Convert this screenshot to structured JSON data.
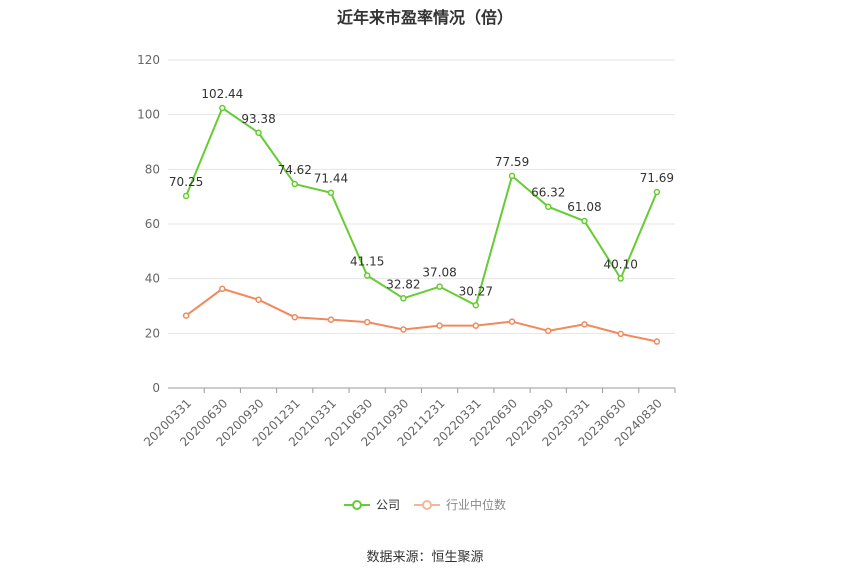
{
  "title": "近年来市盈率情况（倍）",
  "source": "数据来源：恒生聚源",
  "chart_data": {
    "type": "line",
    "categories": [
      "20200331",
      "20200630",
      "20200930",
      "20201231",
      "20210331",
      "20210630",
      "20210930",
      "20211231",
      "20220331",
      "20220630",
      "20220930",
      "20230331",
      "20230630",
      "20240830"
    ],
    "ylim": [
      0,
      120
    ],
    "yticks": [
      0,
      20,
      40,
      60,
      80,
      100,
      120
    ],
    "grid": true,
    "legend_position": "bottom",
    "series": [
      {
        "name": "公司",
        "color": "#66cc33",
        "values": [
          70.25,
          102.44,
          93.38,
          74.62,
          71.44,
          41.15,
          32.82,
          37.08,
          30.27,
          77.59,
          66.32,
          61.08,
          40.1,
          71.69
        ],
        "labels": [
          "70.25",
          "102.44",
          "93.38",
          "74.62",
          "71.44",
          "41.15",
          "32.82",
          "37.08",
          "30.27",
          "77.59",
          "66.32",
          "61.08",
          "40.10",
          "71.69"
        ]
      },
      {
        "name": "行业中位数",
        "color": "#f08a5d",
        "values": [
          26.5,
          36.3,
          32.3,
          25.9,
          25.0,
          24.1,
          21.4,
          22.8,
          22.8,
          24.3,
          20.9,
          23.3,
          19.8,
          17.0
        ]
      }
    ]
  }
}
